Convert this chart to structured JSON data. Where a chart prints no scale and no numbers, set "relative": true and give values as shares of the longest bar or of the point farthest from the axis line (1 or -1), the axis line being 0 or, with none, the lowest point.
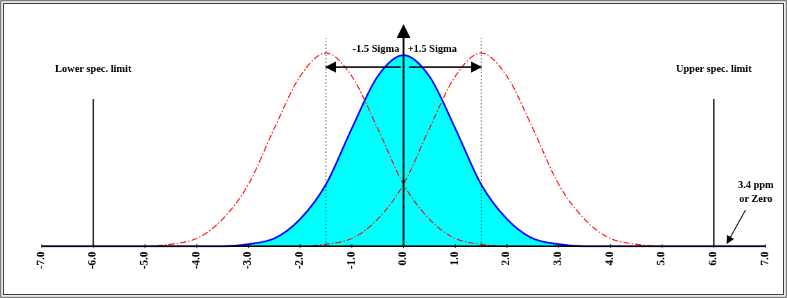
{
  "chart_data": {
    "type": "line",
    "relative": true,
    "xlim": [
      -7,
      7
    ],
    "xticks": [
      {
        "value": -7,
        "label": "-7.0"
      },
      {
        "value": -6,
        "label": "-6.0"
      },
      {
        "value": -5,
        "label": "-5.0"
      },
      {
        "value": -4,
        "label": "-4.0"
      },
      {
        "value": -3,
        "label": "-3.0"
      },
      {
        "value": -2,
        "label": "-2.0"
      },
      {
        "value": -1,
        "label": "-1.0"
      },
      {
        "value": 0,
        "label": "0.0"
      },
      {
        "value": 1,
        "label": "1.0"
      },
      {
        "value": 2,
        "label": "2.0"
      },
      {
        "value": 3,
        "label": "3.0"
      },
      {
        "value": 4,
        "label": "4.0"
      },
      {
        "value": 5,
        "label": "5.0"
      },
      {
        "value": 6,
        "label": "6.0"
      },
      {
        "value": 7,
        "label": "7.0"
      }
    ],
    "series": [
      {
        "type": "area",
        "color": "#00ffff",
        "x": [
          -7,
          -3.5,
          -3,
          -2.5,
          -2,
          -1.5,
          -1,
          -0.5,
          0,
          0.5,
          1,
          1.5,
          2,
          2.5,
          3,
          3.5,
          7
        ],
        "values": [
          0,
          0,
          0.01,
          0.04,
          0.14,
          0.32,
          0.61,
          0.88,
          0.99,
          0.88,
          0.61,
          0.32,
          0.14,
          0.04,
          0.01,
          0,
          0
        ]
      },
      {
        "color": "#ff0000",
        "line_style": "dashed",
        "x": [
          -5,
          -4.5,
          -4,
          -3.5,
          -3,
          -2.5,
          -2,
          -1.5,
          -1,
          -0.5,
          0,
          0.5,
          1,
          1.5,
          2
        ],
        "values": [
          0,
          0.01,
          0.04,
          0.14,
          0.32,
          0.61,
          0.88,
          1,
          0.88,
          0.61,
          0.32,
          0.14,
          0.04,
          0.01,
          0
        ]
      },
      {
        "color": "#ff0000",
        "line_style": "dashed",
        "x": [
          -2,
          -1.5,
          -1,
          -0.5,
          0,
          0.5,
          1,
          1.5,
          2,
          2.5,
          3,
          3.5,
          4,
          4.5,
          5
        ],
        "values": [
          0,
          0.01,
          0.04,
          0.14,
          0.32,
          0.61,
          0.88,
          1,
          0.88,
          0.61,
          0.32,
          0.14,
          0.04,
          0.01,
          0
        ]
      }
    ],
    "ref_lines": [
      {
        "axis": "x",
        "value": -6,
        "label": "Lower spec. limit",
        "line_style": "solid"
      },
      {
        "axis": "x",
        "value": 6,
        "label": "Upper spec. limit",
        "line_style": "solid"
      },
      {
        "axis": "x",
        "value": -1.5,
        "label": "-1.5 Sigma",
        "line_style": "dotted"
      },
      {
        "axis": "x",
        "value": 1.5,
        "label": "+1.5 Sigma",
        "line_style": "dotted"
      }
    ],
    "annotations": [
      {
        "text": "3.4 ppm\nor Zero",
        "x": 6.2,
        "y": 0
      }
    ]
  }
}
